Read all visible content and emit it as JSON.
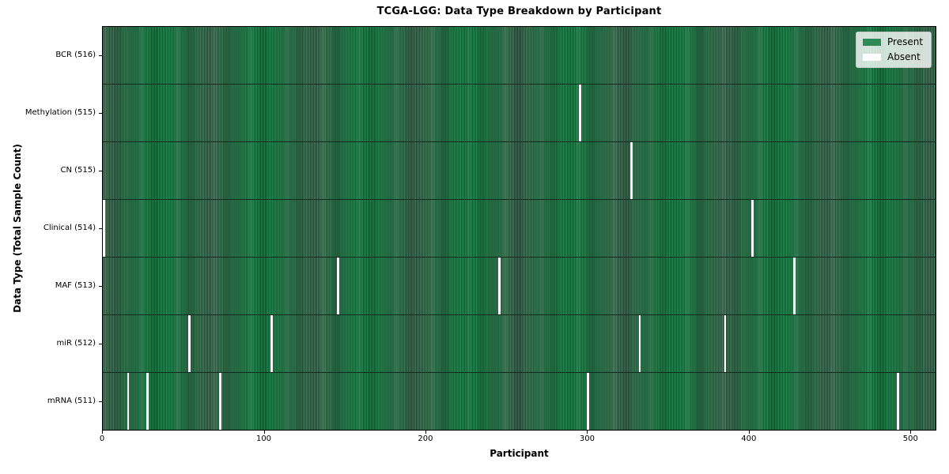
{
  "chart_data": {
    "type": "heatmap",
    "title": "TCGA-LGG: Data Type Breakdown by Participant",
    "xlabel": "Participant",
    "ylabel": "Data Type (Total Sample Count)",
    "x_ticks": [
      0,
      100,
      200,
      300,
      400,
      500
    ],
    "x_range": [
      0,
      516
    ],
    "n_participants": 516,
    "grid": false,
    "legend": {
      "position": "upper right",
      "entries": [
        {
          "label": "Present",
          "color": "#2e8b57"
        },
        {
          "label": "Absent",
          "color": "#ffffff"
        }
      ]
    },
    "rows": [
      {
        "label": "BCR (516)",
        "data_type": "BCR",
        "total_samples": 516,
        "absent_participants": []
      },
      {
        "label": "Methylation (515)",
        "data_type": "Methylation",
        "total_samples": 515,
        "absent_participants": [
          295
        ]
      },
      {
        "label": "CN (515)",
        "data_type": "CN",
        "total_samples": 515,
        "absent_participants": [
          327
        ]
      },
      {
        "label": "Clinical (514)",
        "data_type": "Clinical",
        "total_samples": 514,
        "absent_participants": [
          0,
          402
        ]
      },
      {
        "label": "MAF (513)",
        "data_type": "MAF",
        "total_samples": 513,
        "absent_participants": [
          145,
          245,
          428
        ]
      },
      {
        "label": "miR (512)",
        "data_type": "miR",
        "total_samples": 512,
        "absent_participants": [
          53,
          104,
          332,
          385
        ]
      },
      {
        "label": "mRNA (511)",
        "data_type": "mRNA",
        "total_samples": 511,
        "absent_participants": [
          15,
          27,
          72,
          300,
          492
        ]
      }
    ],
    "colors": {
      "present": "#2e8b57",
      "absent": "#ffffff",
      "cell_edge": "#173c27",
      "row_separator": "#102a1b",
      "spine": "#000000"
    }
  }
}
